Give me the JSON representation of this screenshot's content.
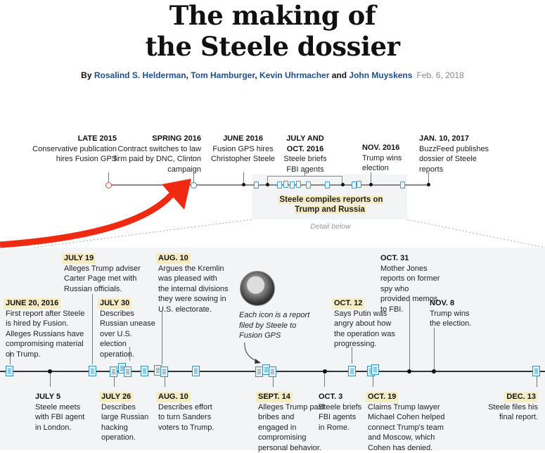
{
  "title": [
    "The making of",
    "the Steele dossier"
  ],
  "byline": {
    "by": "By",
    "authors": [
      "Rosalind S. Helderman",
      "Tom Hamburger",
      "Kevin Uhrmacher",
      "John Muyskens"
    ],
    "sep1": ", ",
    "sep2": ", ",
    "and": " and ",
    "date": "Feb. 6, 2018"
  },
  "overview": [
    {
      "date": "LATE 2015",
      "text": "Conservative publication hires Fusion GPS"
    },
    {
      "date": "SPRING 2016",
      "text": "Contract switches to law firm paid by DNC, Clinton campaign"
    },
    {
      "date": "JUNE 2016",
      "text": "Fusion GPS hires Christopher Steele"
    },
    {
      "date": "JULY AND OCT. 2016",
      "text": "Steele briefs FBI agents"
    },
    {
      "date": "NOV. 2016",
      "text": "Trump wins election"
    },
    {
      "date": "JAN. 10, 2017",
      "text": "BuzzFeed publishes dossier of Steele reports"
    }
  ],
  "compiles_label": "Steele compiles reports on Trump and Russia",
  "detail_below": "Detail below",
  "note": "Each icon is a report filed by Steele to Fusion GPS",
  "detail": [
    {
      "date": "JUNE 20, 2016",
      "text": "First report after Steele is hired by Fusion. Alleges Russians have compromising material on Trump."
    },
    {
      "date": "JULY 5",
      "text": "Steele meets with FBI agent in London."
    },
    {
      "date": "JULY 19",
      "text": "Alleges Trump adviser Carter Page met with Russian officials."
    },
    {
      "date": "JULY 26",
      "text": "Describes large Russian hacking operation."
    },
    {
      "date": "JULY 30",
      "text": "Describes Russian unease over U.S. election operation."
    },
    {
      "date": "AUG. 10",
      "text": "Argues the Kremlin was pleased with the internal divisions they were sowing in U.S. electorate."
    },
    {
      "date": "AUG. 10",
      "text": "Describes effort to turn Sanders voters to Trump."
    },
    {
      "date": "SEPT. 14",
      "text": "Alleges Trump paid bribes and engaged in compromising personal behavior."
    },
    {
      "date": "OCT. 3",
      "text": "Steele briefs FBI agents in Rome."
    },
    {
      "date": "OCT. 12",
      "text": "Says Putin was angry about how the operation was progressing."
    },
    {
      "date": "OCT. 19",
      "text": "Claims Trump lawyer Michael Cohen helped connect Trump's team and Moscow, which Cohen has denied."
    },
    {
      "date": "OCT. 31",
      "text": "Mother Jones reports on former spy who provided memos to FBI."
    },
    {
      "date": "NOV. 8",
      "text": "Trump wins the election."
    },
    {
      "date": "DEC. 13",
      "text": "Steele files his final report."
    }
  ],
  "colors": {
    "arrow": "#f02a12",
    "highlight": "#f5ecc4",
    "doc": "#3a8fb7",
    "panel": "#f3f4f5"
  }
}
